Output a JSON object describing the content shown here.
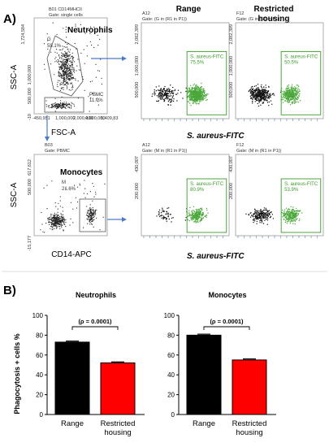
{
  "panel_a": {
    "letter": "A)",
    "neutro_scatter": {
      "well": "B01 CD14MHCII",
      "gate": "Gate: single cells",
      "gate_neutro_name": "G",
      "gate_neutro_pct": "58.1%",
      "gate_pbmc_name": "PBMC",
      "gate_pbmc_pct": "11.0%",
      "cell_label": "Neutrophils",
      "xlabel": "FSC-A",
      "ylabel": "SSC-A",
      "yticks": [
        "1,724,584",
        "1,000,000",
        "500,000",
        "-10"
      ],
      "xticks": [
        "-450,951",
        "1,000,000",
        "2,000,000",
        "4,000,000",
        "5,409,83"
      ]
    },
    "mono_scatter": {
      "well": "B03",
      "gate": "Gate: PBMC",
      "gate_name": "M",
      "gate_pct": "21.6%",
      "cell_label": "Monocytes",
      "xlabel": "CD14-APC",
      "ylabel": "SSC-A",
      "yticks": [
        "617,612",
        "500,000",
        "-15,177"
      ]
    },
    "col_headers": {
      "range": "Range",
      "restricted": "Restricted\nhousing"
    },
    "fitc_label": "S. aureus-FITC",
    "hist": [
      {
        "well": "A12",
        "gate": "Gate: (G in (R1 in P1))",
        "region": "S. aureus-FITC",
        "pct": "75.5%",
        "ytop": "2,082,399",
        "yticks": [
          "1,000,000",
          "500,000"
        ]
      },
      {
        "well": "F12",
        "gate": "Gate: (G in (R1 in P1))",
        "region": "S. aureus-FITC",
        "pct": "50.5%",
        "ytop": "2,082,399",
        "yticks": [
          "1,000,000",
          "500,000"
        ]
      },
      {
        "well": "A12",
        "gate": "Gate: (M in (R1 in P1))",
        "region": "S. aureus-FITC",
        "pct": "80.9%",
        "ytop": "430,007",
        "yticks": [
          "200,000"
        ]
      },
      {
        "well": "F12",
        "gate": "Gate: (M in (R1 in P1))",
        "region": "S. aureus-FITC",
        "pct": "53.9%",
        "ytop": "430,007",
        "yticks": [
          "200,000"
        ]
      }
    ]
  },
  "panel_b": {
    "letter": "B)",
    "ylabel": "Phagocytosis + cells %",
    "p_text": "(ρ = 0.0001)",
    "colors": {
      "range": "#000000",
      "restricted": "#ff0000"
    }
  },
  "chart_data": [
    {
      "type": "bar",
      "title": "Neutrophils",
      "categories": [
        "Range",
        "Restricted\nhousing"
      ],
      "values": [
        73,
        52
      ],
      "errors": [
        1,
        1
      ],
      "ylabel": "Phagocytosis + cells %",
      "ylim": [
        0,
        100
      ],
      "yticks": [
        0,
        20,
        40,
        60,
        80,
        100
      ],
      "annotation": "(ρ = 0.0001)"
    },
    {
      "type": "bar",
      "title": "Monocytes",
      "categories": [
        "Range",
        "Restricted\nhousing"
      ],
      "values": [
        80,
        55
      ],
      "errors": [
        1,
        1
      ],
      "ylabel": "",
      "ylim": [
        0,
        100
      ],
      "yticks": [
        0,
        20,
        40,
        60,
        80,
        100
      ],
      "annotation": "(ρ = 0.0001)"
    }
  ]
}
